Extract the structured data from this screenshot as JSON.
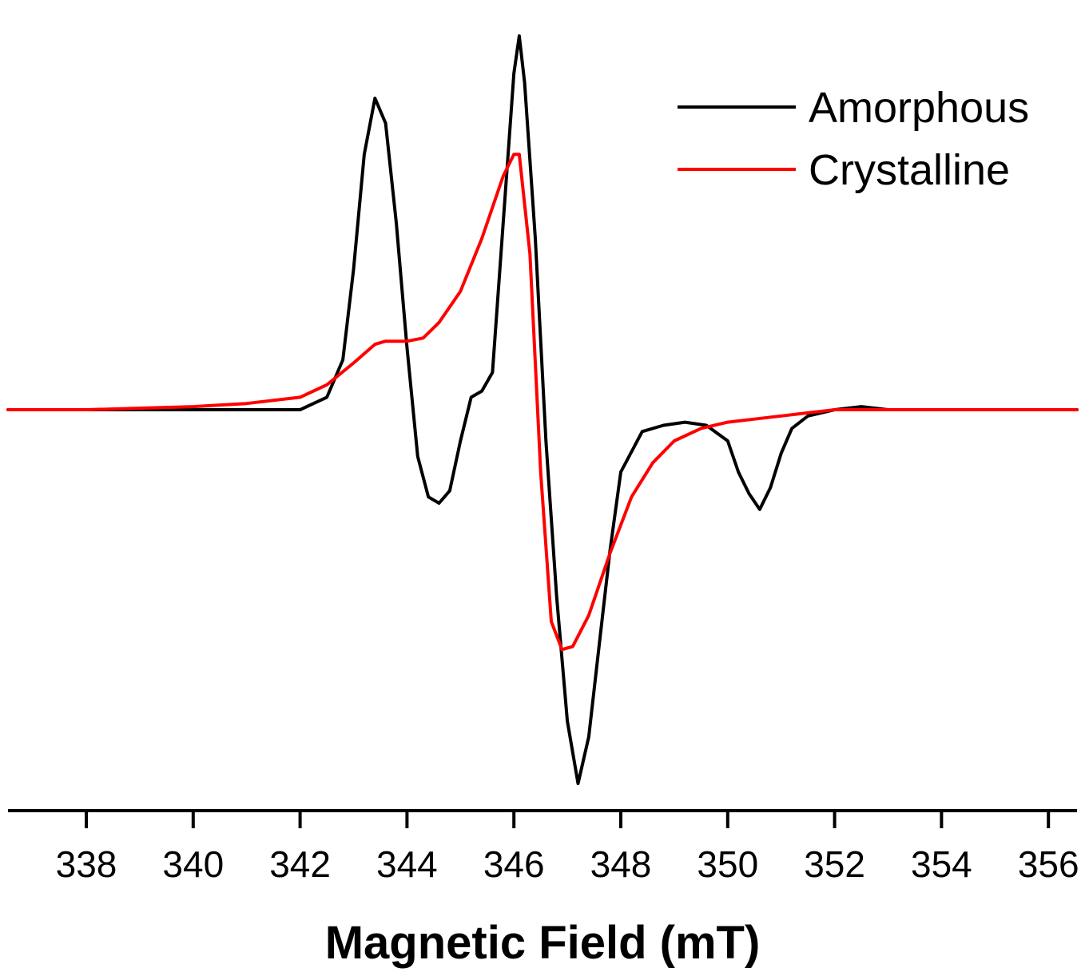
{
  "chart_data": {
    "type": "line",
    "title": "",
    "xlabel": "Magnetic Field (mT)",
    "ylabel": "",
    "xlim": [
      336.5,
      356.6
    ],
    "ylim": [
      -1.1,
      1.1
    ],
    "x_ticks": [
      338,
      340,
      342,
      344,
      346,
      348,
      350,
      352,
      354,
      356
    ],
    "y_axis_visible": false,
    "grid": false,
    "legend_position": "top-right",
    "series": [
      {
        "name": "Amorphous",
        "color": "#000000",
        "x": [
          336.5,
          338,
          340,
          341,
          342,
          342.5,
          342.8,
          343.0,
          343.2,
          343.4,
          343.6,
          343.8,
          344.0,
          344.2,
          344.4,
          344.6,
          344.8,
          345.0,
          345.2,
          345.4,
          345.6,
          345.8,
          346.0,
          346.1,
          346.2,
          346.4,
          346.6,
          346.8,
          347.0,
          347.2,
          347.4,
          347.6,
          347.8,
          348.0,
          348.4,
          348.8,
          349.2,
          349.6,
          350.0,
          350.2,
          350.4,
          350.6,
          350.8,
          351.0,
          351.2,
          351.5,
          352.0,
          352.5,
          353,
          354,
          355,
          356,
          356.6
        ],
        "y": [
          0.0,
          0.0,
          0.0,
          0.0,
          0.0,
          0.04,
          0.16,
          0.45,
          0.82,
          1.0,
          0.92,
          0.6,
          0.2,
          -0.15,
          -0.28,
          -0.3,
          -0.26,
          -0.1,
          0.04,
          0.06,
          0.12,
          0.6,
          1.08,
          1.2,
          1.05,
          0.55,
          -0.1,
          -0.6,
          -1.0,
          -1.2,
          -1.05,
          -0.75,
          -0.45,
          -0.2,
          -0.07,
          -0.05,
          -0.04,
          -0.05,
          -0.1,
          -0.2,
          -0.27,
          -0.32,
          -0.25,
          -0.14,
          -0.06,
          -0.02,
          0.0,
          0.01,
          0.0,
          0.0,
          0.0,
          0.0,
          0.0
        ]
      },
      {
        "name": "Crystalline",
        "color": "#ff0000",
        "x": [
          336.5,
          338,
          340,
          341,
          342,
          342.5,
          343.0,
          343.4,
          343.6,
          343.8,
          344.0,
          344.3,
          344.6,
          345.0,
          345.4,
          345.8,
          346.0,
          346.1,
          346.3,
          346.5,
          346.7,
          346.9,
          347.1,
          347.4,
          347.8,
          348.2,
          348.6,
          349.0,
          349.5,
          350.0,
          350.5,
          351.0,
          351.5,
          352.0,
          353,
          354,
          355,
          356,
          356.6
        ],
        "y": [
          0.0,
          0.0,
          0.01,
          0.02,
          0.04,
          0.08,
          0.15,
          0.21,
          0.22,
          0.22,
          0.22,
          0.23,
          0.28,
          0.38,
          0.55,
          0.75,
          0.82,
          0.82,
          0.5,
          -0.2,
          -0.68,
          -0.77,
          -0.76,
          -0.66,
          -0.46,
          -0.28,
          -0.17,
          -0.1,
          -0.06,
          -0.04,
          -0.03,
          -0.02,
          -0.01,
          0.0,
          0.0,
          0.0,
          0.0,
          0.0,
          0.0
        ]
      }
    ]
  }
}
